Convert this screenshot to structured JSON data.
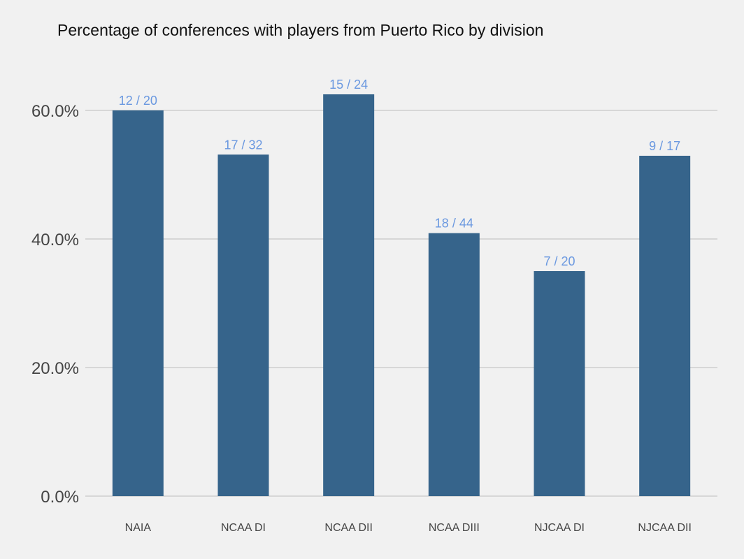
{
  "chart_data": {
    "type": "bar",
    "title": "Percentage of conferences with players from Puerto Rico by division",
    "xlabel": "",
    "ylabel": "",
    "categories": [
      "NAIA",
      "NCAA DI",
      "NCAA DII",
      "NCAA DIII",
      "NJCAA DI",
      "NJCAA DII"
    ],
    "values": [
      60.0,
      53.125,
      62.5,
      40.909,
      35.0,
      52.941
    ],
    "data_labels": [
      "12  /  20",
      "17  /  32",
      "15  /  24",
      "18  /  44",
      "7  /  20",
      "9  /  17"
    ],
    "ylim": [
      0,
      65
    ],
    "yticks": [
      0,
      20,
      40,
      60
    ],
    "ytick_labels": [
      "0.0%",
      "20.0%",
      "40.0%",
      "60.0%"
    ],
    "grid": true,
    "legend": "none",
    "colors": {
      "bar": "#36648b",
      "data_label": "#6a98e0",
      "grid": "#bdbdbd",
      "background": "#f1f1f1"
    }
  }
}
